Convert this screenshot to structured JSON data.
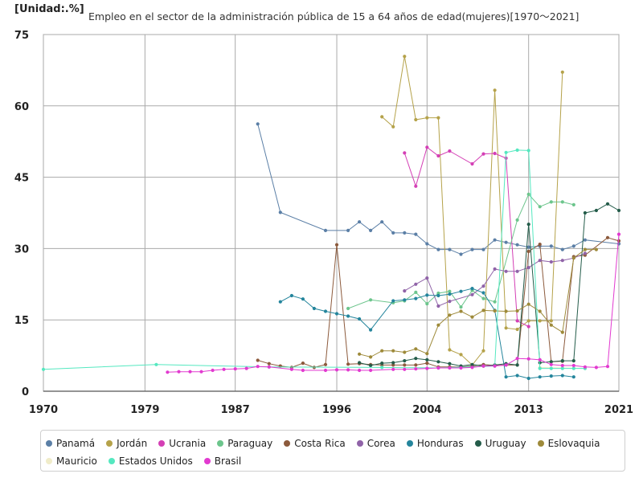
{
  "unit_label": "[Unidad:.%]",
  "title": "Empleo en el sector de la administración pública de 15 a 64 años de edad(mujeres)[1970～2021]",
  "chart_data": {
    "type": "line",
    "title": "Empleo en el sector de la administración pública de 15 a 64 años de edad(mujeres)[1970～2021]",
    "unit": "[Unidad:.%]",
    "xlim": [
      1970,
      2021
    ],
    "ylim": [
      0,
      75
    ],
    "x_ticks": [
      1970,
      1979,
      1987,
      1996,
      2004,
      2013,
      2021
    ],
    "y_ticks": [
      0,
      15,
      30,
      45,
      60,
      75
    ],
    "grid": true,
    "legend_position": "bottom",
    "series": [
      {
        "name": "Panamá",
        "color": "#5b7fa6",
        "points": [
          [
            1989,
            56.2
          ],
          [
            1991,
            37.6
          ],
          [
            1995,
            33.8
          ],
          [
            1997,
            33.8
          ],
          [
            1998,
            35.6
          ],
          [
            1999,
            33.8
          ],
          [
            2000,
            35.6
          ],
          [
            2001,
            33.3
          ],
          [
            2002,
            33.3
          ],
          [
            2003,
            33.0
          ],
          [
            2004,
            31.0
          ],
          [
            2005,
            29.8
          ],
          [
            2006,
            29.8
          ],
          [
            2007,
            28.8
          ],
          [
            2008,
            29.8
          ],
          [
            2009,
            29.8
          ],
          [
            2010,
            31.8
          ],
          [
            2011,
            31.3
          ],
          [
            2012,
            30.8
          ],
          [
            2013,
            30.3
          ],
          [
            2014,
            30.5
          ],
          [
            2015,
            30.5
          ],
          [
            2016,
            29.8
          ],
          [
            2017,
            30.5
          ],
          [
            2018,
            31.8
          ],
          [
            2021,
            31.0
          ]
        ]
      },
      {
        "name": "Jordán",
        "color": "#b5a24a",
        "points": [
          [
            2000,
            57.7
          ],
          [
            2001,
            55.6
          ],
          [
            2002,
            70.4
          ],
          [
            2003,
            57.1
          ],
          [
            2004,
            57.5
          ],
          [
            2005,
            57.5
          ],
          [
            2006,
            8.7
          ],
          [
            2007,
            7.7
          ],
          [
            2008,
            5.5
          ],
          [
            2009,
            8.5
          ],
          [
            2010,
            63.3
          ],
          [
            2011,
            13.3
          ],
          [
            2012,
            13.0
          ],
          [
            2013,
            14.8
          ],
          [
            2014,
            14.8
          ],
          [
            2015,
            14.8
          ],
          [
            2016,
            67.1
          ]
        ]
      },
      {
        "name": "Ucrania",
        "color": "#d43fb5",
        "points": [
          [
            2002,
            50.1
          ],
          [
            2003,
            43.1
          ],
          [
            2004,
            51.3
          ],
          [
            2005,
            49.5
          ],
          [
            2006,
            50.5
          ],
          [
            2008,
            47.8
          ],
          [
            2009,
            49.9
          ],
          [
            2010,
            50.0
          ],
          [
            2011,
            49.0
          ],
          [
            2012,
            14.8
          ],
          [
            2013,
            13.6
          ]
        ]
      },
      {
        "name": "Paraguay",
        "color": "#6cc58c",
        "points": [
          [
            1997,
            17.4
          ],
          [
            1999,
            19.2
          ],
          [
            2001,
            18.6
          ],
          [
            2002,
            19.0
          ],
          [
            2003,
            20.8
          ],
          [
            2004,
            18.4
          ],
          [
            2005,
            20.6
          ],
          [
            2006,
            21.0
          ],
          [
            2007,
            17.7
          ],
          [
            2008,
            21.2
          ],
          [
            2009,
            19.5
          ],
          [
            2010,
            18.8
          ],
          [
            2012,
            36.0
          ],
          [
            2013,
            41.4
          ],
          [
            2014,
            38.8
          ],
          [
            2015,
            39.8
          ],
          [
            2016,
            39.8
          ],
          [
            2017,
            39.2
          ]
        ]
      },
      {
        "name": "Costa Rica",
        "color": "#8c5a3c",
        "points": [
          [
            1989,
            6.5
          ],
          [
            1990,
            5.8
          ],
          [
            1991,
            5.3
          ],
          [
            1992,
            5.0
          ],
          [
            1993,
            5.9
          ],
          [
            1994,
            5.0
          ],
          [
            1995,
            5.6
          ],
          [
            1996,
            30.8
          ],
          [
            1997,
            5.7
          ],
          [
            1998,
            5.8
          ],
          [
            1999,
            5.6
          ],
          [
            2000,
            5.5
          ],
          [
            2001,
            5.5
          ],
          [
            2002,
            5.5
          ],
          [
            2003,
            5.5
          ],
          [
            2004,
            5.9
          ],
          [
            2005,
            5.1
          ],
          [
            2006,
            5.1
          ],
          [
            2007,
            5.1
          ],
          [
            2008,
            5.3
          ],
          [
            2009,
            5.6
          ],
          [
            2010,
            5.4
          ],
          [
            2011,
            5.5
          ],
          [
            2012,
            5.5
          ],
          [
            2013,
            29.4
          ],
          [
            2014,
            30.9
          ],
          [
            2015,
            6.2
          ],
          [
            2016,
            6.3
          ],
          [
            2017,
            28.3
          ],
          [
            2018,
            28.6
          ],
          [
            2020,
            32.3
          ],
          [
            2021,
            31.6
          ]
        ]
      },
      {
        "name": "Corea",
        "color": "#9063a8",
        "points": [
          [
            2002,
            21.1
          ],
          [
            2003,
            22.5
          ],
          [
            2004,
            23.8
          ],
          [
            2005,
            17.9
          ],
          [
            2006,
            18.9
          ],
          [
            2008,
            20.3
          ],
          [
            2009,
            22.1
          ],
          [
            2010,
            25.7
          ],
          [
            2011,
            25.2
          ],
          [
            2012,
            25.2
          ],
          [
            2013,
            26.0
          ],
          [
            2014,
            27.5
          ],
          [
            2015,
            27.2
          ],
          [
            2016,
            27.5
          ],
          [
            2017,
            28.0
          ],
          [
            2018,
            29.0
          ]
        ]
      },
      {
        "name": "Honduras",
        "color": "#24859c",
        "points": [
          [
            1991,
            18.8
          ],
          [
            1992,
            20.1
          ],
          [
            1993,
            19.4
          ],
          [
            1994,
            17.4
          ],
          [
            1995,
            16.8
          ],
          [
            1996,
            16.3
          ],
          [
            1997,
            15.8
          ],
          [
            1998,
            15.2
          ],
          [
            1999,
            12.9
          ],
          [
            2001,
            19.0
          ],
          [
            2002,
            19.2
          ],
          [
            2003,
            19.5
          ],
          [
            2004,
            20.2
          ],
          [
            2005,
            20.1
          ],
          [
            2006,
            20.4
          ],
          [
            2007,
            21.0
          ],
          [
            2008,
            21.6
          ],
          [
            2009,
            20.7
          ],
          [
            2010,
            17.0
          ],
          [
            2011,
            3.0
          ],
          [
            2012,
            3.3
          ],
          [
            2013,
            2.7
          ],
          [
            2014,
            3.0
          ],
          [
            2015,
            3.2
          ],
          [
            2016,
            3.3
          ],
          [
            2017,
            3.0
          ]
        ]
      },
      {
        "name": "Uruguay",
        "color": "#245c4a",
        "points": [
          [
            1998,
            6.0
          ],
          [
            1999,
            5.4
          ],
          [
            2000,
            5.9
          ],
          [
            2001,
            6.0
          ],
          [
            2002,
            6.4
          ],
          [
            2003,
            6.9
          ],
          [
            2004,
            6.6
          ],
          [
            2005,
            6.2
          ],
          [
            2006,
            5.8
          ],
          [
            2007,
            5.3
          ],
          [
            2008,
            5.6
          ],
          [
            2009,
            5.3
          ],
          [
            2010,
            5.5
          ],
          [
            2011,
            5.8
          ],
          [
            2012,
            5.5
          ],
          [
            2013,
            35.1
          ],
          [
            2014,
            6.0
          ],
          [
            2015,
            6.2
          ],
          [
            2016,
            6.4
          ],
          [
            2017,
            6.4
          ],
          [
            2018,
            37.5
          ],
          [
            2019,
            38.0
          ],
          [
            2020,
            39.4
          ],
          [
            2021,
            38.0
          ]
        ]
      },
      {
        "name": "Eslovaquia",
        "color": "#9e8a3a",
        "points": [
          [
            1998,
            7.8
          ],
          [
            1999,
            7.2
          ],
          [
            2000,
            8.5
          ],
          [
            2001,
            8.5
          ],
          [
            2002,
            8.2
          ],
          [
            2003,
            8.9
          ],
          [
            2004,
            7.9
          ],
          [
            2005,
            13.9
          ],
          [
            2006,
            16.0
          ],
          [
            2007,
            16.8
          ],
          [
            2008,
            15.6
          ],
          [
            2009,
            17.0
          ],
          [
            2010,
            16.9
          ],
          [
            2011,
            16.8
          ],
          [
            2012,
            16.9
          ],
          [
            2013,
            18.3
          ],
          [
            2014,
            16.8
          ],
          [
            2015,
            13.9
          ],
          [
            2016,
            12.4
          ],
          [
            2017,
            28.0
          ],
          [
            2018,
            29.8
          ],
          [
            2019,
            29.8
          ]
        ]
      },
      {
        "name": "Mauricio",
        "color": "#f0ecc9",
        "points": [
          [
            2014,
            5.0
          ],
          [
            2016,
            4.9
          ],
          [
            2018,
            4.8
          ]
        ]
      },
      {
        "name": "Estados Unidos",
        "color": "#55e8c0",
        "points": [
          [
            1970,
            4.6
          ],
          [
            1980,
            5.6
          ],
          [
            1990,
            5.1
          ],
          [
            2000,
            5.0
          ],
          [
            2005,
            4.9
          ],
          [
            2010,
            5.3
          ],
          [
            2011,
            50.2
          ],
          [
            2012,
            50.7
          ],
          [
            2013,
            50.6
          ],
          [
            2014,
            4.8
          ],
          [
            2015,
            4.8
          ],
          [
            2016,
            4.8
          ],
          [
            2017,
            4.8
          ],
          [
            2018,
            4.8
          ]
        ]
      },
      {
        "name": "Brasil",
        "color": "#e23ad0",
        "points": [
          [
            1981,
            4.0
          ],
          [
            1982,
            4.1
          ],
          [
            1983,
            4.1
          ],
          [
            1984,
            4.1
          ],
          [
            1985,
            4.4
          ],
          [
            1986,
            4.6
          ],
          [
            1987,
            4.7
          ],
          [
            1988,
            4.8
          ],
          [
            1989,
            5.2
          ],
          [
            1990,
            5.1
          ],
          [
            1992,
            4.6
          ],
          [
            1993,
            4.4
          ],
          [
            1995,
            4.4
          ],
          [
            1996,
            4.5
          ],
          [
            1997,
            4.5
          ],
          [
            1998,
            4.4
          ],
          [
            1999,
            4.4
          ],
          [
            2001,
            4.6
          ],
          [
            2002,
            4.6
          ],
          [
            2003,
            4.7
          ],
          [
            2004,
            4.8
          ],
          [
            2005,
            4.9
          ],
          [
            2006,
            4.9
          ],
          [
            2007,
            4.9
          ],
          [
            2008,
            5.0
          ],
          [
            2009,
            5.3
          ],
          [
            2010,
            5.3
          ],
          [
            2011,
            5.5
          ],
          [
            2012,
            6.9
          ],
          [
            2013,
            6.8
          ],
          [
            2014,
            6.6
          ],
          [
            2015,
            5.6
          ],
          [
            2016,
            5.4
          ],
          [
            2017,
            5.4
          ],
          [
            2018,
            5.1
          ],
          [
            2019,
            5.0
          ],
          [
            2020,
            5.2
          ],
          [
            2021,
            33.0
          ]
        ]
      }
    ]
  }
}
